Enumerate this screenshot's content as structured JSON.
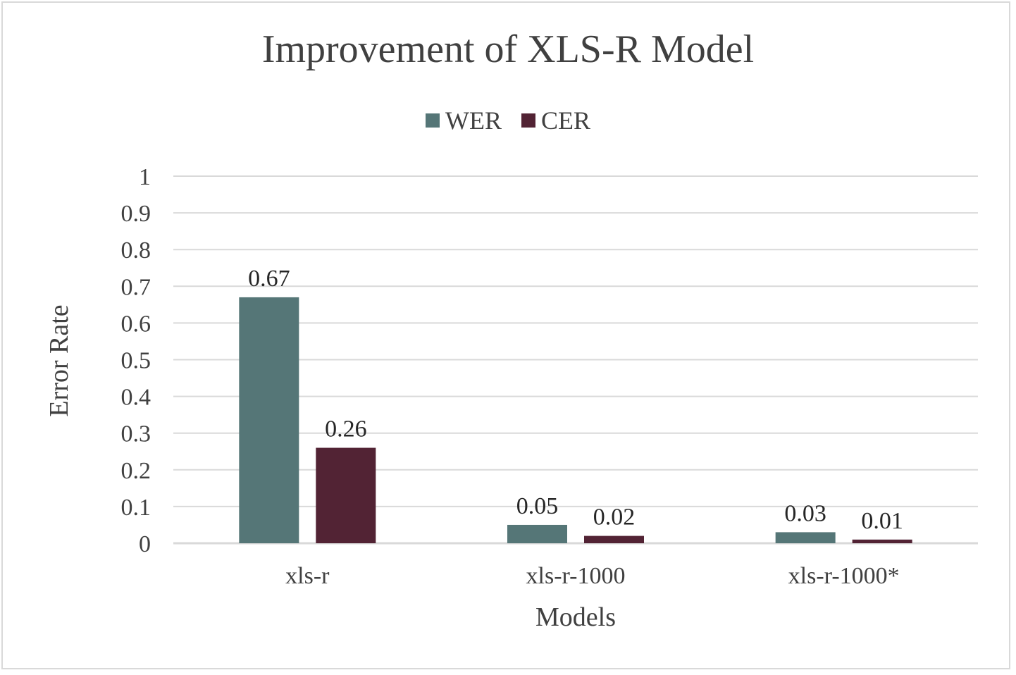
{
  "chart_data": {
    "type": "bar",
    "title": "Improvement of XLS-R Model",
    "xlabel": "Models",
    "ylabel": "Error Rate",
    "categories": [
      "xls-r",
      "xls-r-1000",
      "xls-r-1000*"
    ],
    "series": [
      {
        "name": "WER",
        "color": "#557677",
        "values": [
          0.67,
          0.05,
          0.03
        ],
        "labels": [
          "0.67",
          "0.05",
          "0.03"
        ]
      },
      {
        "name": "CER",
        "color": "#522334",
        "values": [
          0.26,
          0.02,
          0.01
        ],
        "labels": [
          "0.26",
          "0.02",
          "0.01"
        ]
      }
    ],
    "ylim": [
      0,
      1
    ],
    "yticks": [
      "0",
      "0.1",
      "0.2",
      "0.3",
      "0.4",
      "0.5",
      "0.6",
      "0.7",
      "0.8",
      "0.9",
      "1"
    ],
    "grid": true,
    "legend": "top-center"
  }
}
